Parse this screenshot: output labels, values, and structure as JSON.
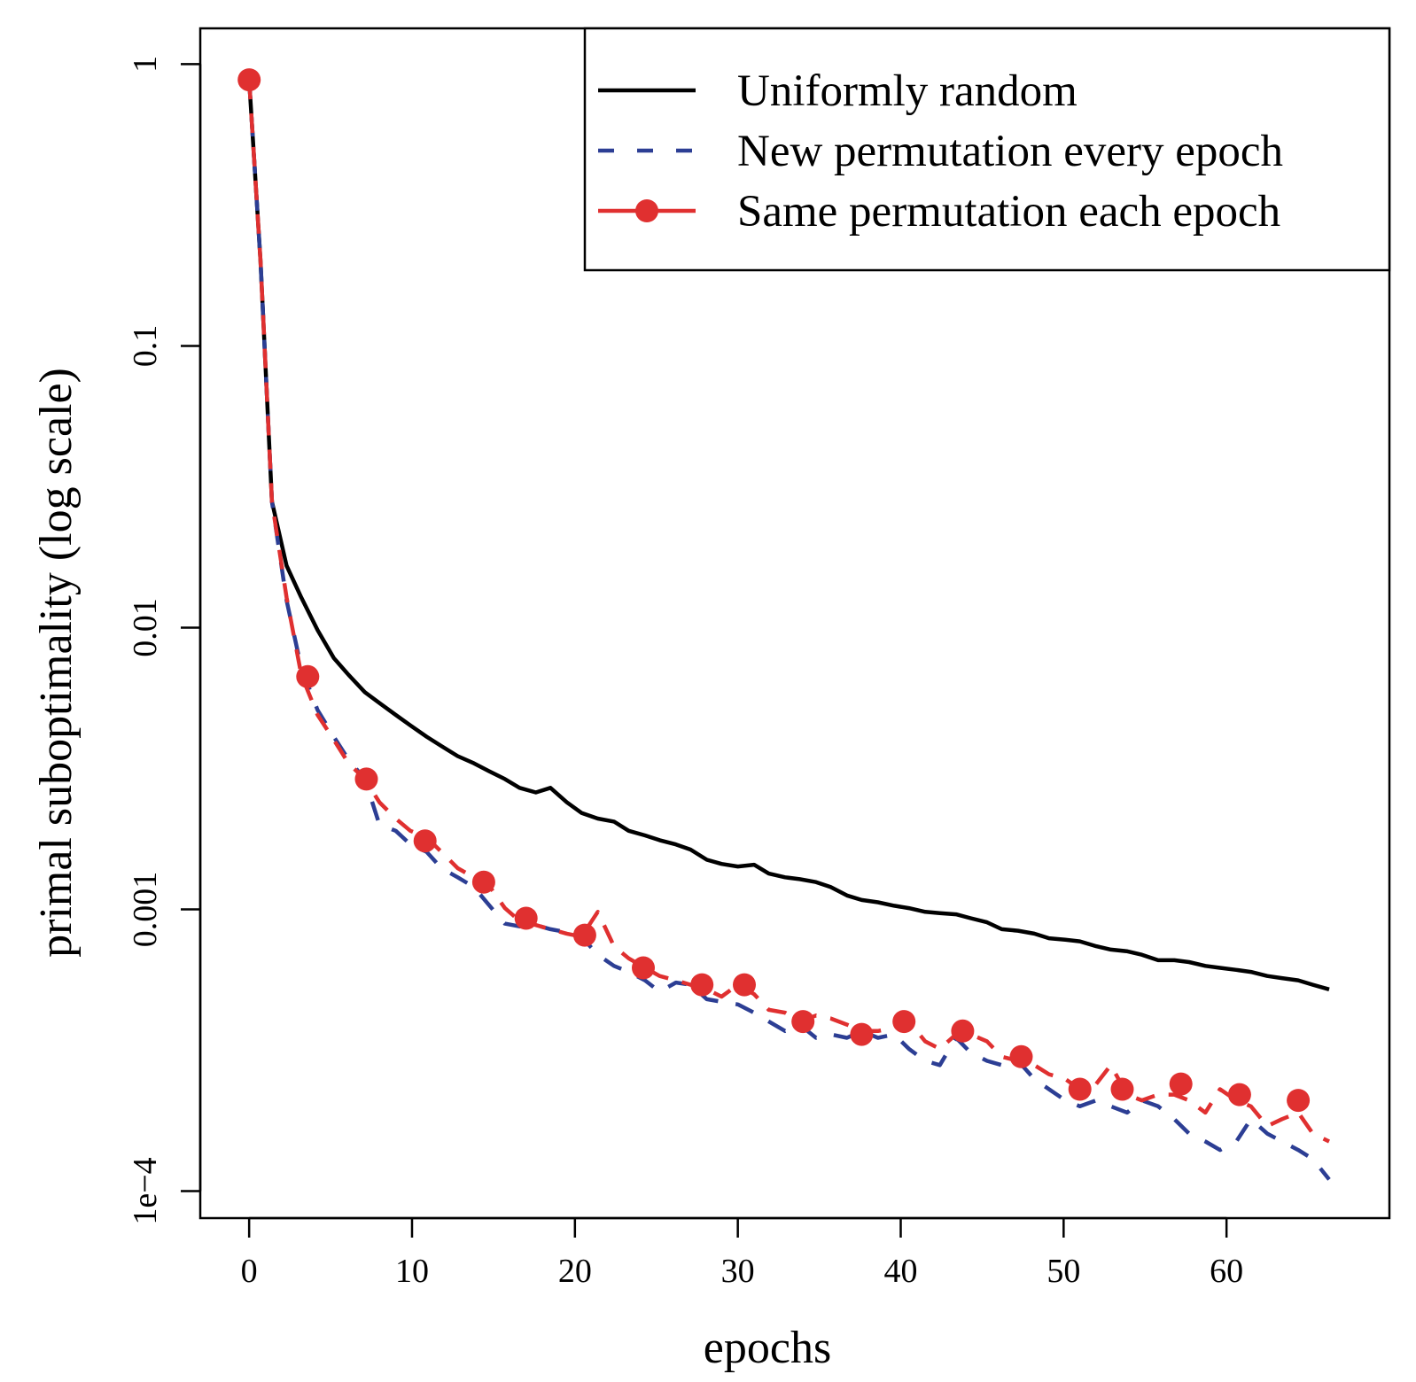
{
  "chart_data": {
    "type": "line",
    "xlabel": "epochs",
    "ylabel": "primal suboptimality (log scale)",
    "y_scale": "log",
    "xlim": [
      -3,
      70
    ],
    "ylim": [
      8.02e-05,
      1.34
    ],
    "x_ticks": [
      0,
      10,
      20,
      30,
      40,
      50,
      60
    ],
    "x_tick_labels": [
      "0",
      "10",
      "20",
      "30",
      "40",
      "50",
      "60"
    ],
    "y_ticks": [
      1,
      0.1,
      0.01,
      0.001,
      0.0001
    ],
    "y_tick_labels": [
      "1",
      "0.1",
      "0.01",
      "0.001",
      "1e−4"
    ],
    "grid": false,
    "legend_position": "top-right",
    "series": [
      {
        "name": "Uniformly random",
        "color": "#000000",
        "style": "solid",
        "marker": "none",
        "x": [
          0,
          0.7,
          1.4,
          2.3,
          3.2,
          4.2,
          5.2,
          6.1,
          7.1,
          8.0,
          9.0,
          9.9,
          10.9,
          11.8,
          12.8,
          13.8,
          14.7,
          15.7,
          16.6,
          17.6,
          18.5,
          19.5,
          20.4,
          21.4,
          22.4,
          23.3,
          24.3,
          25.2,
          26.2,
          27.1,
          28.1,
          29.0,
          30.0,
          31.0,
          31.9,
          32.9,
          33.8,
          34.8,
          35.7,
          36.7,
          37.6,
          38.6,
          39.6,
          40.5,
          41.5,
          42.4,
          43.4,
          44.3,
          45.3,
          46.2,
          47.2,
          48.2,
          49.1,
          50.1,
          51.0,
          52.0,
          52.9,
          53.9,
          54.8,
          55.8,
          56.8,
          57.7,
          58.7,
          59.6,
          60.6,
          61.5,
          62.5,
          63.4,
          64.4,
          65.3,
          66.3
        ],
        "values": [
          0.88,
          0.2,
          0.028,
          0.0166,
          0.0128,
          0.0098,
          0.0078,
          0.0068,
          0.0059,
          0.0054,
          0.0049,
          0.0045,
          0.0041,
          0.0038,
          0.0035,
          0.0033,
          0.0031,
          0.0029,
          0.0027,
          0.0026,
          0.0027,
          0.0024,
          0.0022,
          0.0021,
          0.00205,
          0.0019,
          0.00183,
          0.00176,
          0.0017,
          0.00163,
          0.0015,
          0.00145,
          0.00142,
          0.00144,
          0.00134,
          0.0013,
          0.00128,
          0.00125,
          0.0012,
          0.00112,
          0.00108,
          0.00106,
          0.00103,
          0.00101,
          0.00098,
          0.00097,
          0.00096,
          0.00093,
          0.0009,
          0.00085,
          0.00084,
          0.00082,
          0.00079,
          0.00078,
          0.00077,
          0.00074,
          0.00072,
          0.00071,
          0.00069,
          0.00066,
          0.00066,
          0.00065,
          0.00063,
          0.00062,
          0.00061,
          0.0006,
          0.00058,
          0.00057,
          0.00056,
          0.00054,
          0.00052
        ]
      },
      {
        "name": "New permutation every epoch",
        "color": "#2c3e94",
        "style": "dashed",
        "marker": "none",
        "x": [
          0,
          0.7,
          1.4,
          2.3,
          3.2,
          4.2,
          5.2,
          6.1,
          7.1,
          8.0,
          9.0,
          9.9,
          10.9,
          11.8,
          12.8,
          13.8,
          14.7,
          15.7,
          16.6,
          17.6,
          18.5,
          19.5,
          20.4,
          21.4,
          22.4,
          23.3,
          24.3,
          25.2,
          26.2,
          27.1,
          28.1,
          29.0,
          30.0,
          31.0,
          31.9,
          32.9,
          33.8,
          34.8,
          35.7,
          36.7,
          37.6,
          38.6,
          39.6,
          40.5,
          41.5,
          42.4,
          43.4,
          44.3,
          45.3,
          46.2,
          47.2,
          48.2,
          49.1,
          50.1,
          51.0,
          52.0,
          52.9,
          53.9,
          54.8,
          55.8,
          56.8,
          57.7,
          58.7,
          59.6,
          60.6,
          61.5,
          62.5,
          63.4,
          64.4,
          65.3,
          66.3
        ],
        "values": [
          0.88,
          0.2,
          0.028,
          0.0125,
          0.0072,
          0.0051,
          0.0041,
          0.0034,
          0.0029,
          0.002,
          0.0019,
          0.0017,
          0.0016,
          0.0014,
          0.0013,
          0.0012,
          0.00104,
          0.00089,
          0.00087,
          0.00088,
          0.00085,
          0.00083,
          0.0008,
          0.00069,
          0.00063,
          0.0006,
          0.00056,
          0.00051,
          0.00055,
          0.00054,
          0.00048,
          0.00047,
          0.00046,
          0.00043,
          0.0004,
          0.00037,
          0.00039,
          0.00035,
          0.00036,
          0.00035,
          0.00037,
          0.00035,
          0.00036,
          0.00032,
          0.00029,
          0.00028,
          0.00035,
          0.00031,
          0.00029,
          0.00028,
          0.00029,
          0.00025,
          0.00023,
          0.00021,
          0.0002,
          0.00021,
          0.0002,
          0.00019,
          0.00021,
          0.0002,
          0.00018,
          0.00016,
          0.00015,
          0.00014,
          0.00015,
          0.00018,
          0.00016,
          0.00015,
          0.00014,
          0.00013,
          0.00011
        ]
      },
      {
        "name": "Same permutation each epoch",
        "color": "#e03030",
        "style": "dashed",
        "marker": "circle",
        "x": [
          0,
          0.7,
          1.4,
          2.3,
          3.2,
          4.2,
          5.2,
          6.1,
          7.1,
          8.0,
          9.0,
          9.9,
          10.9,
          11.8,
          12.8,
          13.8,
          14.7,
          15.7,
          16.6,
          17.6,
          18.5,
          19.5,
          20.4,
          21.4,
          22.4,
          23.3,
          24.3,
          25.2,
          26.2,
          27.1,
          28.1,
          29.0,
          30.0,
          31.0,
          31.9,
          32.9,
          33.8,
          34.8,
          35.7,
          36.7,
          37.6,
          38.6,
          39.6,
          40.5,
          41.5,
          42.4,
          43.4,
          44.3,
          45.3,
          46.2,
          47.2,
          48.2,
          49.1,
          50.1,
          51.0,
          52.0,
          52.9,
          53.9,
          54.8,
          55.8,
          56.8,
          57.7,
          58.7,
          59.6,
          60.6,
          61.5,
          62.5,
          63.4,
          64.4,
          65.3,
          66.3
        ],
        "values": [
          0.88,
          0.2,
          0.028,
          0.0128,
          0.0068,
          0.0049,
          0.004,
          0.0033,
          0.0029,
          0.0024,
          0.0021,
          0.0019,
          0.0018,
          0.0016,
          0.0014,
          0.0013,
          0.00122,
          0.00101,
          0.00091,
          0.00088,
          0.00085,
          0.00082,
          0.0008,
          0.00098,
          0.00074,
          0.00067,
          0.00062,
          0.00058,
          0.00056,
          0.00054,
          0.00052,
          0.00049,
          0.00054,
          0.0005,
          0.00044,
          0.00043,
          0.0004,
          0.00042,
          0.00041,
          0.00039,
          0.00037,
          0.00037,
          0.00038,
          0.0004,
          0.00034,
          0.00032,
          0.00036,
          0.00036,
          0.00034,
          0.0003,
          0.00029,
          0.00028,
          0.00026,
          0.00025,
          0.00023,
          0.00024,
          0.00028,
          0.00022,
          0.00021,
          0.00022,
          0.00022,
          0.00021,
          0.00019,
          0.00023,
          0.00021,
          0.0002,
          0.00017,
          0.00018,
          0.00019,
          0.00016,
          0.00015
        ],
        "marker_x": [
          0,
          3.6,
          7.2,
          10.8,
          14.4,
          17.0,
          20.6,
          24.2,
          27.8,
          30.4,
          34.0,
          37.6,
          40.2,
          43.8,
          47.4,
          51.0,
          53.6,
          57.2,
          60.8,
          64.4
        ],
        "marker_values": [
          0.88,
          0.0067,
          0.0029,
          0.00175,
          0.00125,
          0.00093,
          0.00081,
          0.00062,
          0.00054,
          0.00054,
          0.0004,
          0.00036,
          0.0004,
          0.00037,
          0.0003,
          0.00023,
          0.00023,
          0.00024,
          0.00022,
          0.00021
        ]
      }
    ]
  }
}
